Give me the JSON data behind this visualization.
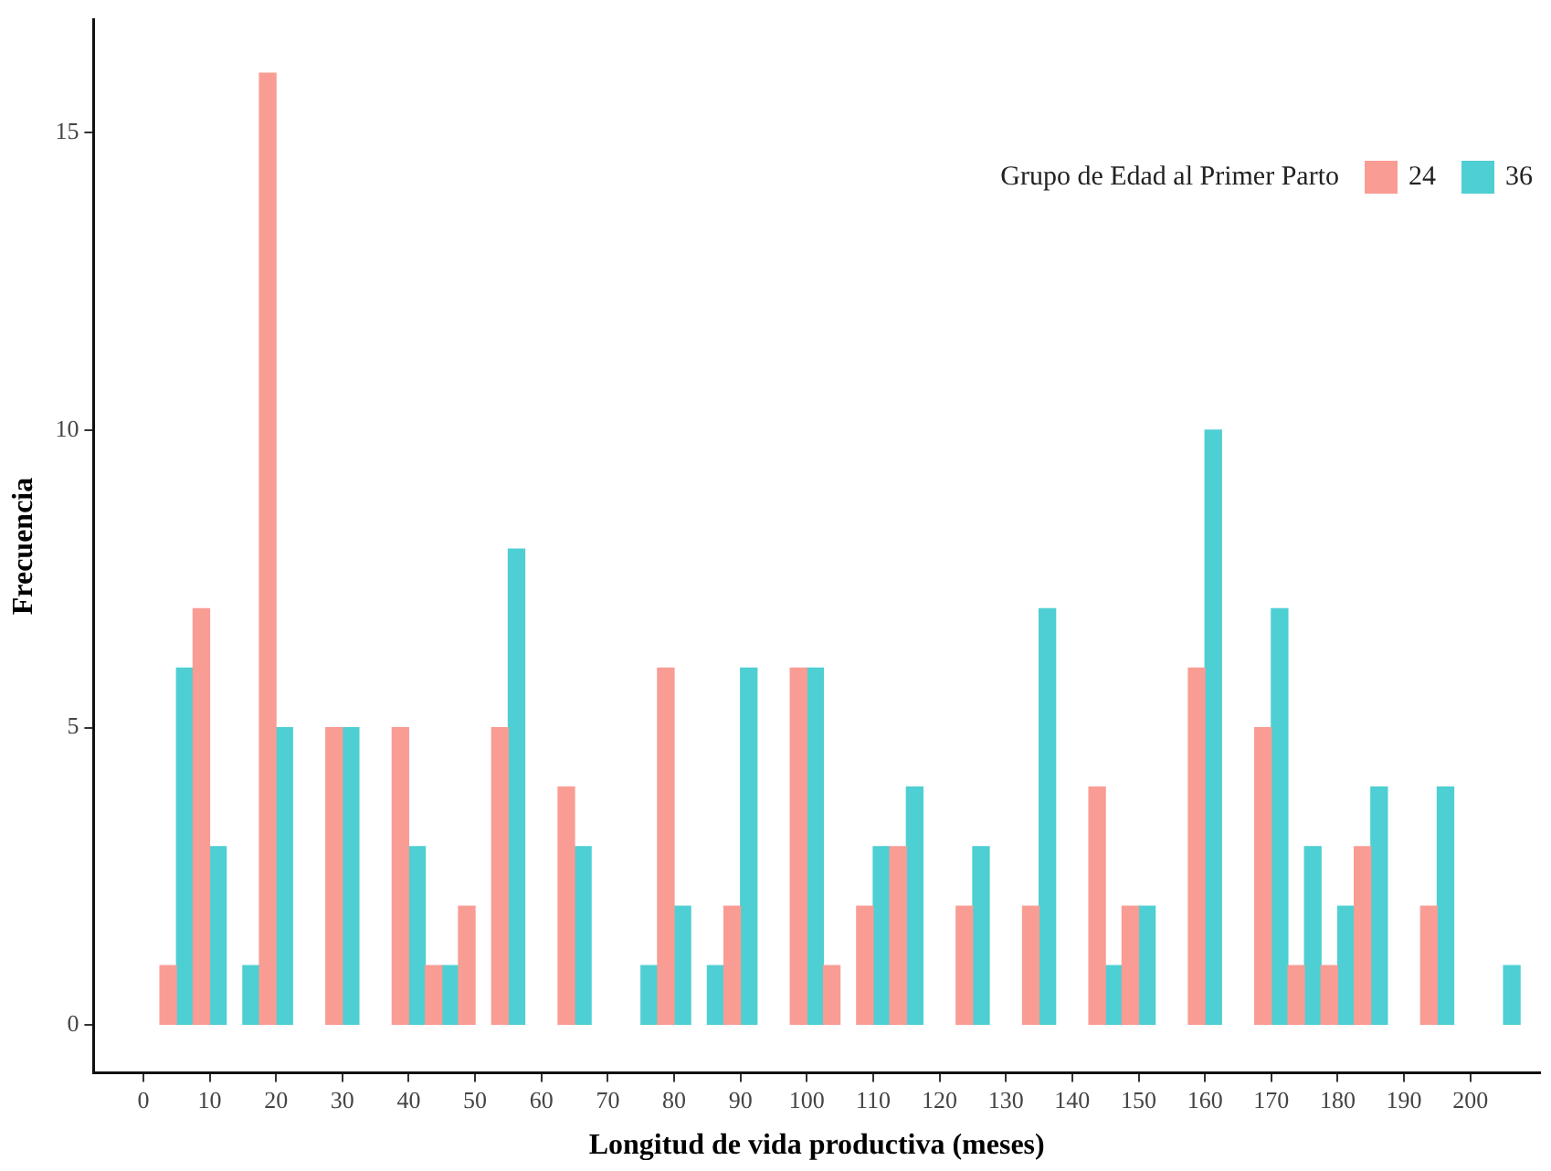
{
  "chart_data": {
    "type": "bar",
    "xlabel": "Longitud de vida productiva (meses)",
    "ylabel": "Frecuencia",
    "legend_title": "Grupo de Edad al Primer Parto",
    "legend": "top right",
    "grid": false,
    "xlim": [
      -7.5,
      210.5
    ],
    "xticks": [
      0,
      10,
      20,
      30,
      40,
      50,
      60,
      70,
      80,
      90,
      100,
      110,
      120,
      130,
      140,
      150,
      160,
      170,
      180,
      190,
      200
    ],
    "ylim": [
      -0.8,
      16.9
    ],
    "yticks": [
      0,
      5,
      10,
      15
    ],
    "series": [
      {
        "name": "24",
        "color": "#f99c94",
        "x": [
          3.75,
          8.75,
          18.75,
          28.75,
          38.75,
          43.75,
          48.75,
          53.75,
          63.75,
          78.75,
          88.75,
          98.75,
          103.75,
          108.75,
          113.75,
          123.75,
          133.75,
          143.75,
          148.75,
          158.75,
          168.75,
          173.75,
          178.75,
          183.75,
          193.75
        ],
        "values": [
          1,
          7,
          16,
          5,
          5,
          1,
          2,
          5,
          4,
          6,
          2,
          6,
          1,
          2,
          3,
          2,
          2,
          4,
          2,
          6,
          5,
          1,
          1,
          3,
          2
        ]
      },
      {
        "name": "36",
        "color": "#4ecfd3",
        "x": [
          6.25,
          11.25,
          16.25,
          21.25,
          31.25,
          41.25,
          46.25,
          56.25,
          66.25,
          76.25,
          81.25,
          86.25,
          91.25,
          101.25,
          111.25,
          116.25,
          126.25,
          136.25,
          146.25,
          151.25,
          161.25,
          171.25,
          176.25,
          181.25,
          186.25,
          196.25,
          206.25
        ],
        "values": [
          6,
          3,
          1,
          5,
          5,
          3,
          1,
          8,
          3,
          1,
          2,
          1,
          6,
          6,
          3,
          4,
          3,
          7,
          1,
          2,
          10,
          7,
          3,
          2,
          4,
          4,
          1
        ]
      }
    ]
  }
}
